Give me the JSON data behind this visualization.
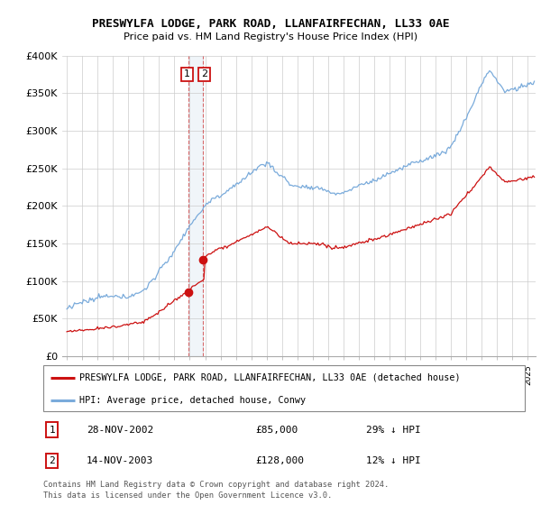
{
  "title": "PRESWYLFA LODGE, PARK ROAD, LLANFAIRFECHAN, LL33 0AE",
  "subtitle": "Price paid vs. HM Land Registry's House Price Index (HPI)",
  "ylabel_ticks": [
    "£0",
    "£50K",
    "£100K",
    "£150K",
    "£200K",
    "£250K",
    "£300K",
    "£350K",
    "£400K"
  ],
  "ytick_values": [
    0,
    50000,
    100000,
    150000,
    200000,
    250000,
    300000,
    350000,
    400000
  ],
  "ylim": [
    0,
    400000
  ],
  "hpi_color": "#7aabdb",
  "price_color": "#cc1111",
  "sale1_year": 2002.91,
  "sale1_price": 85000,
  "sale2_year": 2003.87,
  "sale2_price": 128000,
  "legend_entry1": "PRESWYLFA LODGE, PARK ROAD, LLANFAIRFECHAN, LL33 0AE (detached house)",
  "legend_entry2": "HPI: Average price, detached house, Conwy",
  "table_row1": [
    "1",
    "28-NOV-2002",
    "£85,000",
    "29% ↓ HPI"
  ],
  "table_row2": [
    "2",
    "14-NOV-2003",
    "£128,000",
    "12% ↓ HPI"
  ],
  "footnote1": "Contains HM Land Registry data © Crown copyright and database right 2024.",
  "footnote2": "This data is licensed under the Open Government Licence v3.0."
}
